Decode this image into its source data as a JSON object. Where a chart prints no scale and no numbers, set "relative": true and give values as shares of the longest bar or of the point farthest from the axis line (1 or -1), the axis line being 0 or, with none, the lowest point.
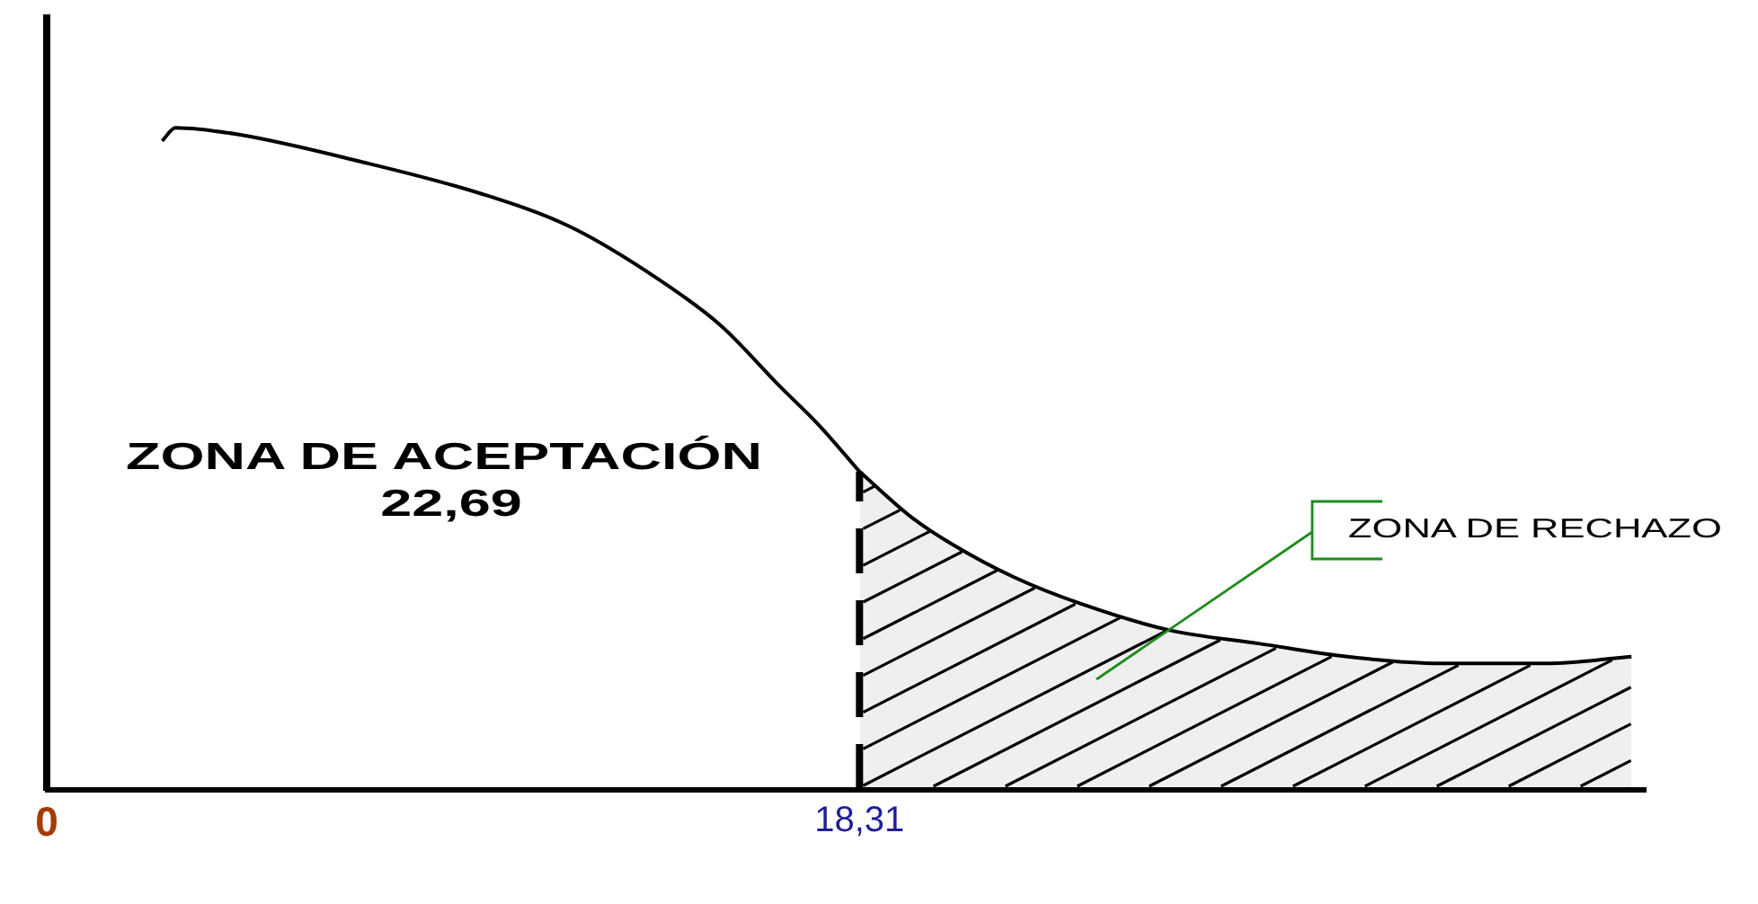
{
  "chart_data": {
    "type": "line",
    "relative": true,
    "series": [
      {
        "color": "#000000",
        "x": [
          2.6,
          2.9,
          4.3,
          7.0,
          9.8,
          11.8,
          13.8,
          15.2,
          16.5,
          17.4,
          18.31
        ],
        "values": [
          0.98,
          1,
          0.99,
          0.95,
          0.9,
          0.85,
          0.77,
          0.7,
          0.61,
          0.55,
          0.48
        ]
      },
      {
        "type": "area",
        "name": "ZONA DE RECHAZO",
        "color": "#000000",
        "x": [
          18.31,
          19.5,
          20.4,
          21.8,
          23.3,
          25.3,
          27.3,
          29.3,
          31.4,
          33.8,
          35.7
        ],
        "values": [
          0.48,
          0.41,
          0.37,
          0.32,
          0.28,
          0.24,
          0.22,
          0.2,
          0.19,
          0.19,
          0.2
        ]
      }
    ],
    "xlim": [
      0,
      36
    ],
    "xticks": [
      {
        "value": 0,
        "label": "0"
      },
      {
        "value": 18.31,
        "label": "18,31"
      }
    ],
    "tick_labels": "x",
    "marker": "none",
    "line_style": "solid",
    "ref_lines": [
      {
        "axis": "x",
        "value": 18.31,
        "line_style": "dashed",
        "color": "#000000"
      }
    ],
    "annotations": [
      "ZONA DE ACEPTACIÓN",
      "22,69"
    ]
  }
}
